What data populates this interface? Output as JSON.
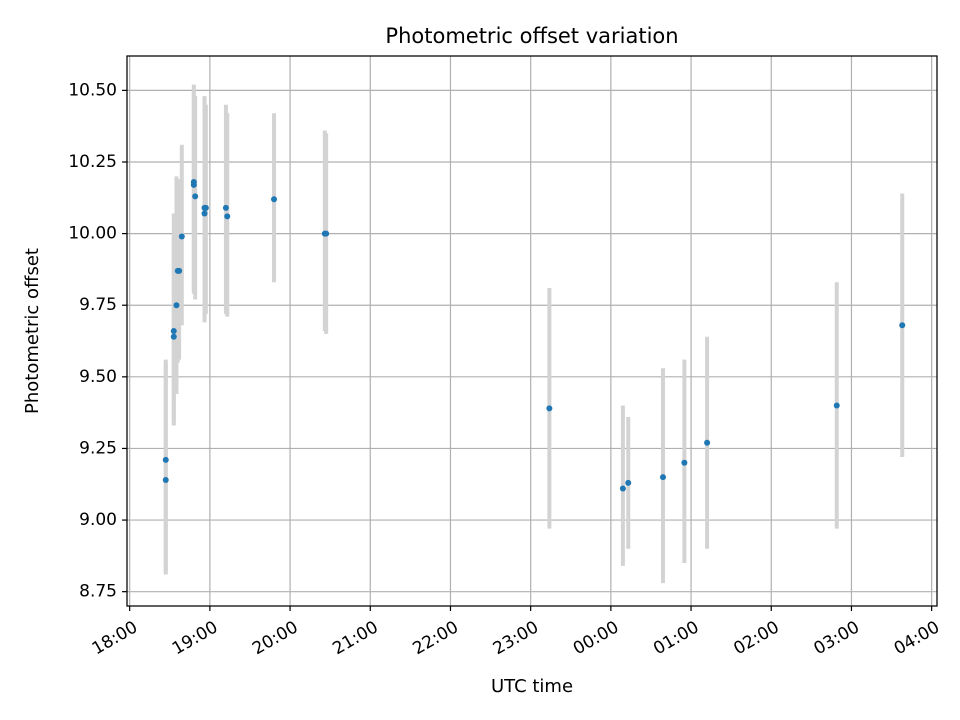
{
  "chart_data": {
    "type": "scatter",
    "title": "Photometric offset variation",
    "xlabel": "UTC time",
    "ylabel": "Photometric offset",
    "x_axis_kind": "time",
    "xlim": [
      "17:58",
      "04:04"
    ],
    "ylim": [
      8.7,
      10.62
    ],
    "grid": true,
    "x_ticks": [
      "18:00",
      "19:00",
      "20:00",
      "21:00",
      "22:00",
      "23:00",
      "00:00",
      "01:00",
      "02:00",
      "03:00",
      "04:00"
    ],
    "y_ticks": [
      "8.75",
      "9.00",
      "9.25",
      "9.50",
      "9.75",
      "10.00",
      "10.25",
      "10.50"
    ],
    "series": [
      {
        "marker_color": "#1f77b4",
        "errorbar_color": "#d3d3d3",
        "points": [
          {
            "x": "18:27",
            "y": 9.14,
            "err_low": 8.81,
            "err_high": 9.56
          },
          {
            "x": "18:27",
            "y": 9.21,
            "err_low": 8.82,
            "err_high": 9.55
          },
          {
            "x": "18:33",
            "y": 9.64,
            "err_low": 9.33,
            "err_high": 9.99
          },
          {
            "x": "18:33",
            "y": 9.66,
            "err_low": 9.34,
            "err_high": 10.07
          },
          {
            "x": "18:35",
            "y": 9.75,
            "err_low": 9.44,
            "err_high": 10.2
          },
          {
            "x": "18:36",
            "y": 9.87,
            "err_low": 9.55,
            "err_high": 10.18
          },
          {
            "x": "18:37",
            "y": 9.87,
            "err_low": 9.56,
            "err_high": 10.19
          },
          {
            "x": "18:39",
            "y": 9.99,
            "err_low": 9.68,
            "err_high": 10.31
          },
          {
            "x": "18:48",
            "y": 10.17,
            "err_low": 9.79,
            "err_high": 10.52
          },
          {
            "x": "18:48",
            "y": 10.18,
            "err_low": 9.8,
            "err_high": 10.5
          },
          {
            "x": "18:49",
            "y": 10.13,
            "err_low": 9.77,
            "err_high": 10.48
          },
          {
            "x": "18:56",
            "y": 10.07,
            "err_low": 9.69,
            "err_high": 10.44
          },
          {
            "x": "18:56",
            "y": 10.09,
            "err_low": 9.7,
            "err_high": 10.48
          },
          {
            "x": "18:57",
            "y": 10.09,
            "err_low": 9.72,
            "err_high": 10.45
          },
          {
            "x": "19:12",
            "y": 10.09,
            "err_low": 9.72,
            "err_high": 10.45
          },
          {
            "x": "19:13",
            "y": 10.06,
            "err_low": 9.71,
            "err_high": 10.42
          },
          {
            "x": "19:48",
            "y": 10.12,
            "err_low": 9.83,
            "err_high": 10.42
          },
          {
            "x": "20:26",
            "y": 10.0,
            "err_low": 9.66,
            "err_high": 10.36
          },
          {
            "x": "20:27",
            "y": 10.0,
            "err_low": 9.65,
            "err_high": 10.35
          },
          {
            "x": "23:14",
            "y": 9.39,
            "err_low": 8.97,
            "err_high": 9.81
          },
          {
            "x": "00:09",
            "y": 9.11,
            "err_low": 8.84,
            "err_high": 9.4
          },
          {
            "x": "00:13",
            "y": 9.13,
            "err_low": 8.9,
            "err_high": 9.36
          },
          {
            "x": "00:39",
            "y": 9.15,
            "err_low": 8.78,
            "err_high": 9.53
          },
          {
            "x": "00:55",
            "y": 9.2,
            "err_low": 8.85,
            "err_high": 9.56
          },
          {
            "x": "01:12",
            "y": 9.27,
            "err_low": 8.9,
            "err_high": 9.64
          },
          {
            "x": "02:49",
            "y": 9.4,
            "err_low": 8.97,
            "err_high": 9.83
          },
          {
            "x": "03:38",
            "y": 9.68,
            "err_low": 9.22,
            "err_high": 10.14
          }
        ]
      }
    ]
  }
}
